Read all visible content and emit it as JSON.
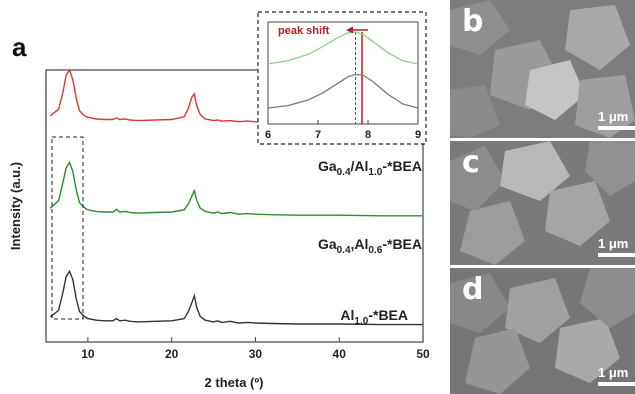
{
  "panel_a_label": "a",
  "chart_data": [
    {
      "type": "line",
      "title": "",
      "xlabel": "2 theta (º)",
      "ylabel": "Intensity (a.u.)",
      "xlim": [
        5,
        50
      ],
      "xticks": [
        10,
        20,
        30,
        40,
        50
      ],
      "y_ticks_shown": false,
      "grid": false,
      "offset_baselines": [
        0.06,
        0.46,
        0.8
      ],
      "series": [
        {
          "name": "Al1.0-*BEA",
          "color": "#333333",
          "x": [
            5.5,
            6.5,
            7.0,
            7.4,
            7.8,
            8.2,
            8.6,
            9.0,
            9.5,
            10,
            11,
            12,
            13,
            13.4,
            13.8,
            14.5,
            15,
            16,
            18,
            20,
            21.5,
            22.0,
            22.4,
            22.7,
            23.0,
            23.4,
            24,
            25,
            25.5,
            26,
            27,
            28,
            29,
            30,
            32,
            35,
            40,
            45,
            50
          ],
          "y": [
            0.16,
            0.28,
            0.6,
            0.9,
            1.0,
            0.85,
            0.5,
            0.26,
            0.18,
            0.13,
            0.1,
            0.09,
            0.09,
            0.13,
            0.09,
            0.1,
            0.08,
            0.07,
            0.08,
            0.09,
            0.13,
            0.26,
            0.42,
            0.55,
            0.33,
            0.17,
            0.1,
            0.07,
            0.09,
            0.06,
            0.08,
            0.05,
            0.06,
            0.05,
            0.04,
            0.03,
            0.03,
            0.02,
            0.02
          ]
        },
        {
          "name": "Ga0.4,Al0.6-*BEA",
          "color": "#2e8b2e",
          "x": [
            5.5,
            6.5,
            7.0,
            7.4,
            7.8,
            8.2,
            8.6,
            9.0,
            9.5,
            10,
            11,
            12,
            13,
            13.4,
            13.8,
            14.5,
            15,
            16,
            18,
            20,
            21.5,
            22.0,
            22.4,
            22.7,
            23.0,
            23.4,
            24,
            25,
            25.5,
            26,
            27,
            28,
            29,
            30,
            32,
            35,
            40,
            45,
            50
          ],
          "y": [
            0.16,
            0.3,
            0.62,
            0.9,
            1.0,
            0.84,
            0.5,
            0.26,
            0.18,
            0.13,
            0.1,
            0.09,
            0.09,
            0.14,
            0.09,
            0.1,
            0.08,
            0.07,
            0.08,
            0.09,
            0.13,
            0.24,
            0.38,
            0.48,
            0.3,
            0.16,
            0.1,
            0.07,
            0.09,
            0.06,
            0.08,
            0.05,
            0.06,
            0.05,
            0.04,
            0.03,
            0.03,
            0.02,
            0.02
          ]
        },
        {
          "name": "Ga0.4/Al1.0-*BEA",
          "color": "#e03535",
          "x": [
            5.5,
            6.5,
            7.0,
            7.4,
            7.8,
            8.2,
            8.6,
            9.0,
            9.5,
            10,
            11,
            12,
            13,
            13.4,
            13.8,
            14.5,
            15,
            16,
            18,
            20,
            21.5,
            22.0,
            22.4,
            22.7,
            23.0,
            23.4,
            24,
            25,
            25.5,
            26,
            27,
            28,
            29,
            30,
            32,
            35,
            40,
            45,
            50
          ],
          "y": [
            0.16,
            0.28,
            0.58,
            0.9,
            1.0,
            0.82,
            0.48,
            0.25,
            0.17,
            0.13,
            0.1,
            0.09,
            0.09,
            0.12,
            0.09,
            0.1,
            0.08,
            0.07,
            0.08,
            0.09,
            0.14,
            0.3,
            0.5,
            0.56,
            0.34,
            0.18,
            0.1,
            0.07,
            0.08,
            0.06,
            0.07,
            0.05,
            0.06,
            0.05,
            0.04,
            0.03,
            0.03,
            0.02,
            0.02
          ]
        }
      ],
      "legend_labels": [
        {
          "base": "Ga",
          "sub1": "0.4",
          "mid": "/Al",
          "sub2": "1.0",
          "tail": "-*BEA"
        },
        {
          "base": "Ga",
          "sub1": "0.4",
          "mid": ",Al",
          "sub2": "0.6",
          "tail": "-*BEA"
        },
        {
          "base": "Al",
          "sub1": "1.0",
          "mid": "",
          "sub2": "",
          "tail": "-*BEA"
        }
      ]
    },
    {
      "type": "line",
      "title": "",
      "annotation": "peak shift",
      "xlim": [
        6,
        9
      ],
      "xticks": [
        6,
        7,
        8,
        9
      ],
      "marker_lines_x": [
        7.75,
        7.88
      ],
      "series": [
        {
          "name": "Ga0.4,Al0.6-*BEA",
          "color": "#8fcf8f",
          "x": [
            6.0,
            6.4,
            6.8,
            7.1,
            7.4,
            7.6,
            7.75,
            7.9,
            8.1,
            8.4,
            8.7,
            9.0
          ],
          "y": [
            0.6,
            0.64,
            0.72,
            0.82,
            0.93,
            0.99,
            1.0,
            0.97,
            0.88,
            0.74,
            0.64,
            0.6
          ]
        },
        {
          "name": "Al1.0-*BEA",
          "color": "#7a7a7a",
          "x": [
            6.0,
            6.4,
            6.8,
            7.1,
            7.4,
            7.6,
            7.75,
            7.9,
            8.1,
            8.4,
            8.7,
            9.0
          ],
          "y": [
            0.05,
            0.08,
            0.15,
            0.24,
            0.36,
            0.44,
            0.47,
            0.46,
            0.38,
            0.22,
            0.1,
            0.05
          ]
        }
      ]
    }
  ],
  "sem_panels": [
    {
      "letter": "b",
      "scale": "1 μm"
    },
    {
      "letter": "c",
      "scale": "1 μm"
    },
    {
      "letter": "d",
      "scale": "1 μm"
    }
  ]
}
